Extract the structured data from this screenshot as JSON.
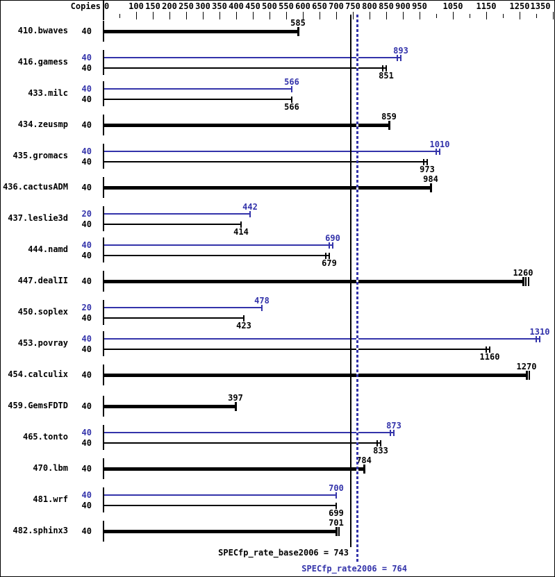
{
  "colors": {
    "base": "#000000",
    "peak": "#3333aa",
    "background": "#ffffff",
    "border": "#000000"
  },
  "footer": {
    "base_text": "SPECfp_rate_base2006 = 743",
    "peak_text": "SPECfp_rate2006 = 764"
  },
  "chart_data": {
    "type": "bar",
    "orientation": "horizontal",
    "title": "",
    "value_axis": {
      "title": "Copies",
      "min": 0,
      "max": 1390,
      "labeled_ticks": [
        0,
        100,
        150,
        200,
        250,
        300,
        350,
        400,
        450,
        500,
        550,
        600,
        650,
        700,
        750,
        800,
        850,
        900,
        950,
        1050,
        1150,
        1250,
        1350
      ],
      "minor_ticks": [
        50,
        1000,
        1100,
        1200,
        1300
      ],
      "grid": false
    },
    "legend": {
      "base_color": "#000000",
      "peak_color": "#3333aa"
    },
    "benchmarks": [
      {
        "name": "410.bwaves",
        "bars": [
          {
            "run": "base",
            "copies": 40,
            "value": 585,
            "style": "thick",
            "end_marker": "cap",
            "extra_ticks": 0
          }
        ]
      },
      {
        "name": "416.gamess",
        "bars": [
          {
            "run": "peak",
            "copies": 40,
            "value": 893,
            "style": "thin",
            "end_marker": "double"
          },
          {
            "run": "base",
            "copies": 40,
            "value": 851,
            "style": "thin",
            "end_marker": "double"
          }
        ]
      },
      {
        "name": "433.milc",
        "bars": [
          {
            "run": "peak",
            "copies": 40,
            "value": 566,
            "style": "thin",
            "end_marker": "single"
          },
          {
            "run": "base",
            "copies": 40,
            "value": 566,
            "style": "thin",
            "end_marker": "single"
          }
        ]
      },
      {
        "name": "434.zeusmp",
        "bars": [
          {
            "run": "base",
            "copies": 40,
            "value": 859,
            "style": "thick",
            "end_marker": "cap",
            "extra_ticks": 0
          }
        ]
      },
      {
        "name": "435.gromacs",
        "bars": [
          {
            "run": "peak",
            "copies": 40,
            "value": 1010,
            "style": "thin",
            "end_marker": "double"
          },
          {
            "run": "base",
            "copies": 40,
            "value": 973,
            "style": "thin",
            "end_marker": "double"
          }
        ]
      },
      {
        "name": "436.cactusADM",
        "bars": [
          {
            "run": "base",
            "copies": 40,
            "value": 984,
            "style": "thick",
            "end_marker": "cap",
            "extra_ticks": 0
          }
        ]
      },
      {
        "name": "437.leslie3d",
        "bars": [
          {
            "run": "peak",
            "copies": 20,
            "value": 442,
            "style": "thin",
            "end_marker": "single"
          },
          {
            "run": "base",
            "copies": 40,
            "value": 414,
            "style": "thin",
            "end_marker": "single"
          }
        ]
      },
      {
        "name": "444.namd",
        "bars": [
          {
            "run": "peak",
            "copies": 40,
            "value": 690,
            "style": "thin",
            "end_marker": "double"
          },
          {
            "run": "base",
            "copies": 40,
            "value": 679,
            "style": "thin",
            "end_marker": "double"
          }
        ]
      },
      {
        "name": "447.dealII",
        "bars": [
          {
            "run": "base",
            "copies": 40,
            "value": 1260,
            "style": "thick",
            "end_marker": "cap",
            "extra_ticks": 2
          }
        ]
      },
      {
        "name": "450.soplex",
        "bars": [
          {
            "run": "peak",
            "copies": 20,
            "value": 478,
            "style": "thin",
            "end_marker": "single"
          },
          {
            "run": "base",
            "copies": 40,
            "value": 423,
            "style": "thin",
            "end_marker": "single"
          }
        ]
      },
      {
        "name": "453.povray",
        "bars": [
          {
            "run": "peak",
            "copies": 40,
            "value": 1310,
            "style": "thin",
            "end_marker": "double"
          },
          {
            "run": "base",
            "copies": 40,
            "value": 1160,
            "style": "thin",
            "end_marker": "double"
          }
        ]
      },
      {
        "name": "454.calculix",
        "bars": [
          {
            "run": "base",
            "copies": 40,
            "value": 1270,
            "style": "thick",
            "end_marker": "cap",
            "extra_ticks": 1
          }
        ]
      },
      {
        "name": "459.GemsFDTD",
        "bars": [
          {
            "run": "base",
            "copies": 40,
            "value": 397,
            "style": "thick",
            "end_marker": "cap",
            "extra_ticks": 0
          }
        ]
      },
      {
        "name": "465.tonto",
        "bars": [
          {
            "run": "peak",
            "copies": 40,
            "value": 873,
            "style": "thin",
            "end_marker": "double"
          },
          {
            "run": "base",
            "copies": 40,
            "value": 833,
            "style": "thin",
            "end_marker": "double"
          }
        ]
      },
      {
        "name": "470.lbm",
        "bars": [
          {
            "run": "base",
            "copies": 40,
            "value": 784,
            "style": "thick",
            "end_marker": "cap",
            "extra_ticks": 0
          }
        ]
      },
      {
        "name": "481.wrf",
        "bars": [
          {
            "run": "peak",
            "copies": 40,
            "value": 700,
            "style": "thin",
            "end_marker": "single"
          },
          {
            "run": "base",
            "copies": 40,
            "value": 699,
            "style": "thin",
            "end_marker": "single"
          }
        ]
      },
      {
        "name": "482.sphinx3",
        "bars": [
          {
            "run": "base",
            "copies": 40,
            "value": 701,
            "style": "thick",
            "end_marker": "cap",
            "extra_ticks": 1
          }
        ]
      }
    ],
    "reference_lines": [
      {
        "name": "base_mean",
        "metric": "SPECfp_rate_base2006",
        "value": 743,
        "style": "solid",
        "color": "#000000"
      },
      {
        "name": "peak_mean",
        "metric": "SPECfp_rate2006",
        "value": 764,
        "style": "dotted",
        "color": "#3333aa"
      }
    ]
  }
}
